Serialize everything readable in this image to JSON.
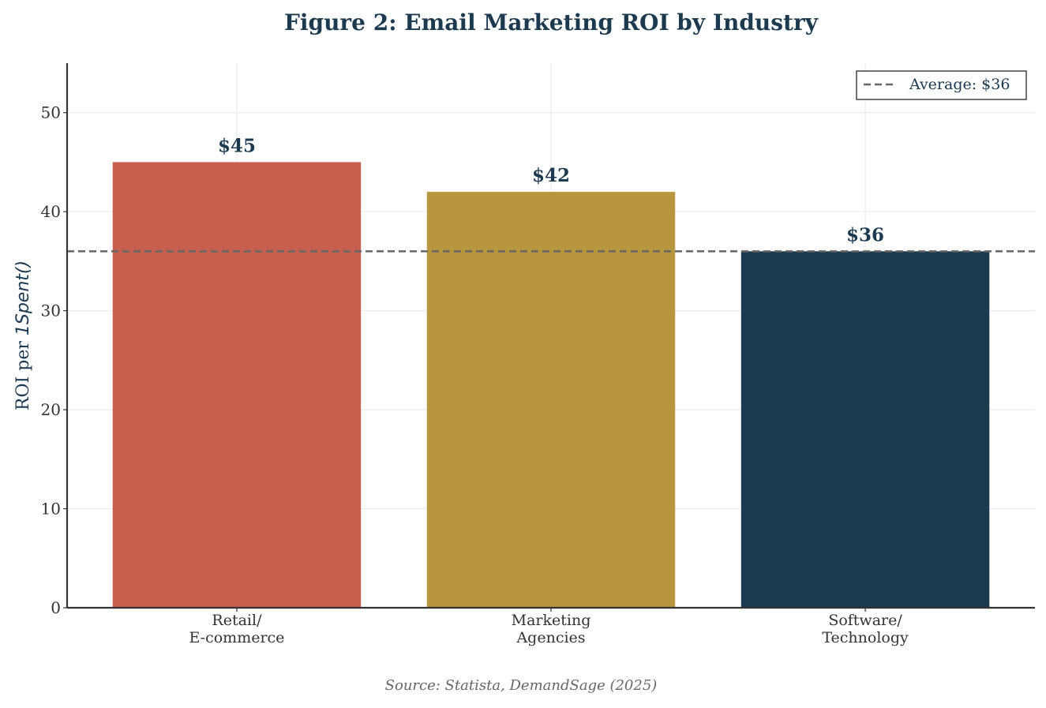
{
  "chart_data": {
    "type": "bar",
    "title": "Figure 2: Email Marketing ROI by Industry",
    "ylabel_plain": "ROI per ",
    "ylabel_math": "1Spent()",
    "xlabel": "",
    "categories": [
      "Retail/\nE-commerce",
      "Marketing\nAgencies",
      "Software/\nTechnology"
    ],
    "values": [
      45,
      42,
      36
    ],
    "data_labels": [
      "$45",
      "$42",
      "$36"
    ],
    "colors": [
      "#c75f4e",
      "#b8963e",
      "#1b3a50"
    ],
    "ylim": [
      0,
      55
    ],
    "yticks": [
      0,
      10,
      20,
      30,
      40,
      50
    ],
    "grid": true,
    "reference_line": {
      "value": 36,
      "label": "Average: $36",
      "style": "dashed",
      "color": "#666666"
    },
    "legend_position": "top-right",
    "source": "Source: Statista, DemandSage (2025)"
  }
}
